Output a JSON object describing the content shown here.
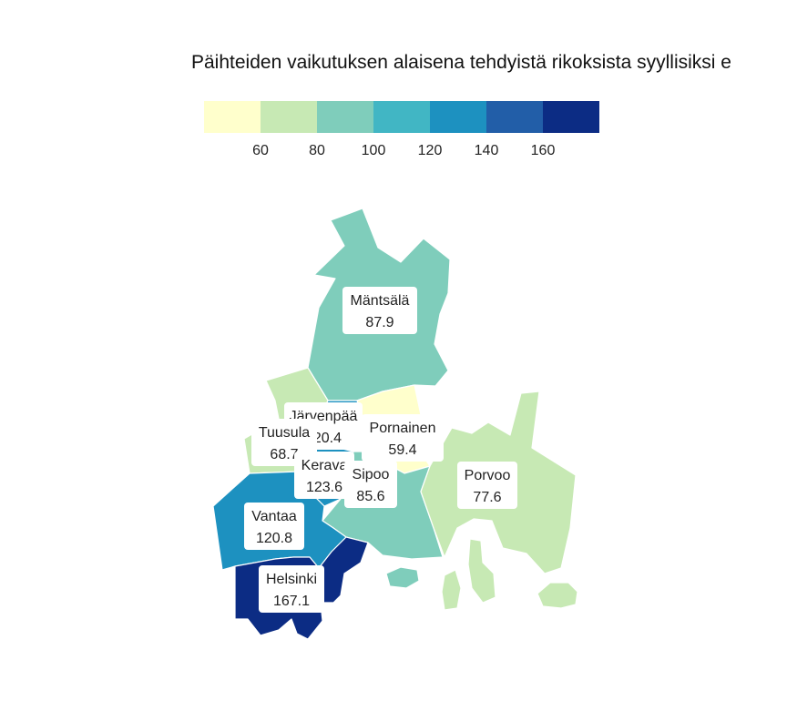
{
  "title": "Päihteiden vaikutuksen alaisena tehdyistä rikoksista syyllisiksi e",
  "legend": {
    "colors": [
      "#ffffcc",
      "#c7e9b4",
      "#7fcdbb",
      "#41b6c4",
      "#1d91c0",
      "#225ea8",
      "#0c2c84"
    ],
    "ticks": [
      "60",
      "80",
      "100",
      "120",
      "140",
      "160"
    ]
  },
  "regions": [
    {
      "name": "Mäntsälä",
      "value": "87.9",
      "color": "#7fcdbb"
    },
    {
      "name": "Järvenpää",
      "value": "120.4",
      "color": "#1d91c0"
    },
    {
      "name": "Tuusula",
      "value": "68.7",
      "color": "#c7e9b4"
    },
    {
      "name": "Pornainen",
      "value": "59.4",
      "color": "#ffffcc"
    },
    {
      "name": "Kerava",
      "value": "123.6",
      "color": "#1d91c0"
    },
    {
      "name": "Sipoo",
      "value": "85.6",
      "color": "#7fcdbb"
    },
    {
      "name": "Porvoo",
      "value": "77.6",
      "color": "#c7e9b4"
    },
    {
      "name": "Vantaa",
      "value": "120.8",
      "color": "#1d91c0"
    },
    {
      "name": "Helsinki",
      "value": "167.1",
      "color": "#0c2c84"
    }
  ]
}
